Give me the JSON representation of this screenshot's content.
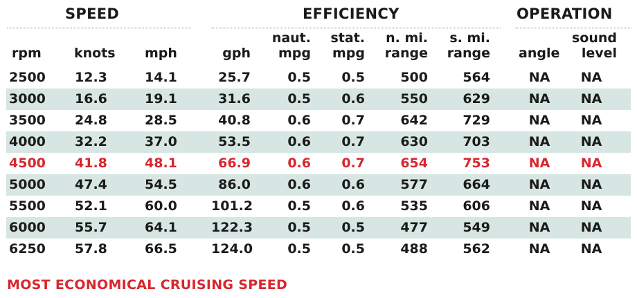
{
  "sections": {
    "speed": "SPEED",
    "efficiency": "EFFICIENCY",
    "operation": "OPERATION"
  },
  "columns": {
    "rpm": "rpm",
    "knots": "knots",
    "mph": "mph",
    "gph": "gph",
    "naut_mpg_1": "naut.",
    "naut_mpg_2": "mpg",
    "stat_mpg_1": "stat.",
    "stat_mpg_2": "mpg",
    "nmi_range_1": "n. mi.",
    "nmi_range_2": "range",
    "smi_range_1": "s. mi.",
    "smi_range_2": "range",
    "angle": "angle",
    "sound_1": "sound",
    "sound_2": "level"
  },
  "rows": [
    {
      "rpm": "2500",
      "knots": "12.3",
      "mph": "14.1",
      "gph": "25.7",
      "naut_mpg": "0.5",
      "stat_mpg": "0.5",
      "nmi_range": "500",
      "smi_range": "564",
      "angle": "NA",
      "sound": "NA"
    },
    {
      "rpm": "3000",
      "knots": "16.6",
      "mph": "19.1",
      "gph": "31.6",
      "naut_mpg": "0.5",
      "stat_mpg": "0.6",
      "nmi_range": "550",
      "smi_range": "629",
      "angle": "NA",
      "sound": "NA"
    },
    {
      "rpm": "3500",
      "knots": "24.8",
      "mph": "28.5",
      "gph": "40.8",
      "naut_mpg": "0.6",
      "stat_mpg": "0.7",
      "nmi_range": "642",
      "smi_range": "729",
      "angle": "NA",
      "sound": "NA"
    },
    {
      "rpm": "4000",
      "knots": "32.2",
      "mph": "37.0",
      "gph": "53.5",
      "naut_mpg": "0.6",
      "stat_mpg": "0.7",
      "nmi_range": "630",
      "smi_range": "703",
      "angle": "NA",
      "sound": "NA"
    },
    {
      "rpm": "4500",
      "knots": "41.8",
      "mph": "48.1",
      "gph": "66.9",
      "naut_mpg": "0.6",
      "stat_mpg": "0.7",
      "nmi_range": "654",
      "smi_range": "753",
      "angle": "NA",
      "sound": "NA"
    },
    {
      "rpm": "5000",
      "knots": "47.4",
      "mph": "54.5",
      "gph": "86.0",
      "naut_mpg": "0.6",
      "stat_mpg": "0.6",
      "nmi_range": "577",
      "smi_range": "664",
      "angle": "NA",
      "sound": "NA"
    },
    {
      "rpm": "5500",
      "knots": "52.1",
      "mph": "60.0",
      "gph": "101.2",
      "naut_mpg": "0.5",
      "stat_mpg": "0.6",
      "nmi_range": "535",
      "smi_range": "606",
      "angle": "NA",
      "sound": "NA"
    },
    {
      "rpm": "6000",
      "knots": "55.7",
      "mph": "64.1",
      "gph": "122.3",
      "naut_mpg": "0.5",
      "stat_mpg": "0.5",
      "nmi_range": "477",
      "smi_range": "549",
      "angle": "NA",
      "sound": "NA"
    },
    {
      "rpm": "6250",
      "knots": "57.8",
      "mph": "66.5",
      "gph": "124.0",
      "naut_mpg": "0.5",
      "stat_mpg": "0.5",
      "nmi_range": "488",
      "smi_range": "562",
      "angle": "NA",
      "sound": "NA"
    }
  ],
  "footer": "MOST ECONOMICAL CRUISING SPEED",
  "colors": {
    "highlight": "#d8262d",
    "shade": "#d7e6e2",
    "text": "#1a1a1a"
  }
}
